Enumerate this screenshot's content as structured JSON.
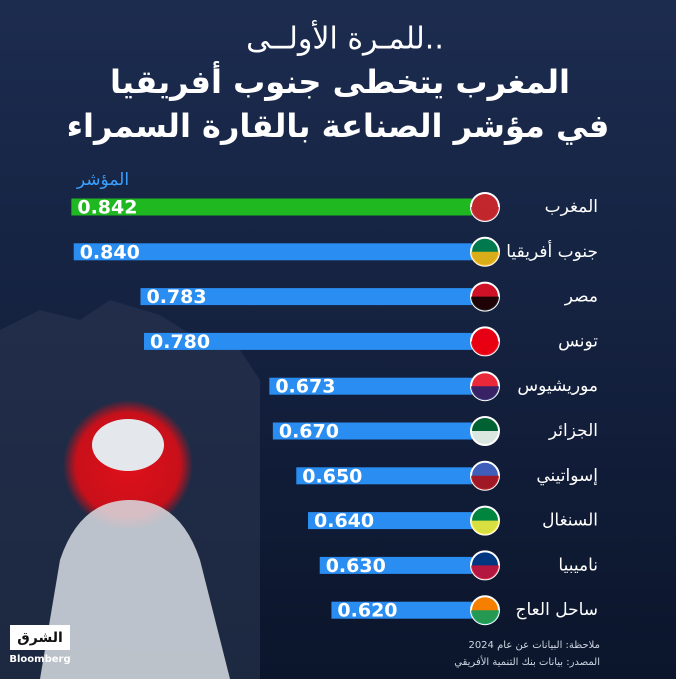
{
  "chart_data": {
    "type": "bar",
    "orientation": "horizontal",
    "title_lines": [
      "للمـرة الأولــى..",
      "المغرب يتخطى جنوب أفريقيا",
      "في مؤشر الصناعة بالقارة السمراء"
    ],
    "axis_label": "المؤشر",
    "categories": [
      "المغرب",
      "جنوب أفريقيا",
      "مصر",
      "تونس",
      "موريشيوس",
      "الجزائر",
      "إسواتيني",
      "السنغال",
      "ناميبيا",
      "ساحل العاج"
    ],
    "values": [
      0.842,
      0.84,
      0.783,
      0.78,
      0.673,
      0.67,
      0.65,
      0.64,
      0.63,
      0.62
    ],
    "value_labels": [
      "0.842",
      "0.840",
      "0.783",
      "0.780",
      "0.673",
      "0.670",
      "0.650",
      "0.640",
      "0.630",
      "0.620"
    ],
    "colors": [
      "#1fb820",
      "#2a8df2",
      "#2a8df2",
      "#2a8df2",
      "#2a8df2",
      "#2a8df2",
      "#2a8df2",
      "#2a8df2",
      "#2a8df2",
      "#2a8df2"
    ],
    "xlim": [
      0.5,
      0.85
    ],
    "notes": [
      "ملاحظة: البيانات عن عام 2024",
      "المصدر: بيانات بنك التنمية الأفريقي"
    ],
    "logo": [
      "الشرق",
      "Bloomberg"
    ]
  }
}
